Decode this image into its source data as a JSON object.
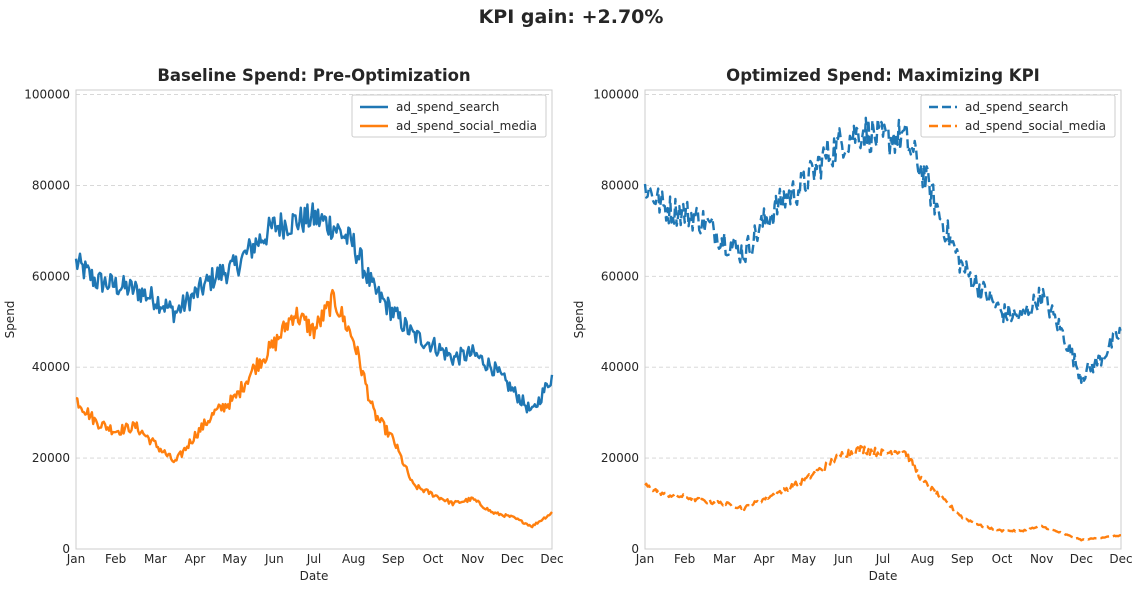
{
  "figure": {
    "suptitle": "KPI gain: +2.70%"
  },
  "colors": {
    "search": "#1f77b4",
    "social": "#ff7f0e"
  },
  "chart_data": [
    {
      "type": "line",
      "title": "Baseline Spend: Pre-Optimization",
      "xlabel": "Date",
      "ylabel": "Spend",
      "ylim": [
        0,
        101000
      ],
      "yticks": [
        0,
        20000,
        40000,
        60000,
        80000,
        100000
      ],
      "xticks": [
        "Jan",
        "Feb",
        "Mar",
        "Apr",
        "May",
        "Jun",
        "Jul",
        "Aug",
        "Sep",
        "Oct",
        "Nov",
        "Dec"
      ],
      "grid": "y-dashed",
      "legend_position": "top-right",
      "line_style": "solid",
      "x": [
        "Jan 1",
        "Jan 15",
        "Feb 1",
        "Feb 15",
        "Mar 1",
        "Mar 15",
        "Apr 1",
        "Apr 15",
        "May 1",
        "May 15",
        "Jun 1",
        "Jun 15",
        "Jul 1",
        "Jul 15",
        "Aug 1",
        "Aug 15",
        "Sep 1",
        "Sep 15",
        "Oct 1",
        "Oct 15",
        "Nov 1",
        "Nov 15",
        "Dec 1",
        "Dec 15",
        "Dec 31"
      ],
      "series": [
        {
          "name": "ad_spend_search",
          "color": "#1f77b4",
          "values": [
            63000,
            59000,
            58000,
            57000,
            55000,
            52000,
            56000,
            60000,
            62000,
            67000,
            71000,
            72000,
            73000,
            71000,
            67000,
            57000,
            52000,
            47000,
            45000,
            42000,
            43000,
            40000,
            35000,
            30000,
            38000
          ]
        },
        {
          "name": "ad_spend_social_media",
          "color": "#ff7f0e",
          "values": [
            33000,
            28000,
            26000,
            27000,
            23000,
            19000,
            25000,
            30000,
            33000,
            40000,
            45000,
            52000,
            48000,
            55000,
            46000,
            30000,
            24000,
            14000,
            12000,
            10000,
            11000,
            8000,
            7000,
            5000,
            8000
          ]
        }
      ]
    },
    {
      "type": "line",
      "title": "Optimized Spend: Maximizing KPI",
      "xlabel": "Date",
      "ylabel": "Spend",
      "ylim": [
        0,
        101000
      ],
      "yticks": [
        0,
        20000,
        40000,
        60000,
        80000,
        100000
      ],
      "xticks": [
        "Jan",
        "Feb",
        "Mar",
        "Apr",
        "May",
        "Jun",
        "Jul",
        "Aug",
        "Sep",
        "Oct",
        "Nov",
        "Dec"
      ],
      "grid": "y-dashed",
      "legend_position": "top-right",
      "line_style": "dashed",
      "x": [
        "Jan 1",
        "Jan 15",
        "Feb 1",
        "Feb 15",
        "Mar 1",
        "Mar 15",
        "Apr 1",
        "Apr 15",
        "May 1",
        "May 15",
        "Jun 1",
        "Jun 15",
        "Jul 1",
        "Jul 15",
        "Aug 1",
        "Aug 15",
        "Sep 1",
        "Sep 15",
        "Oct 1",
        "Oct 15",
        "Nov 1",
        "Nov 15",
        "Dec 1",
        "Dec 15",
        "Dec 31"
      ],
      "series": [
        {
          "name": "ad_spend_search",
          "color": "#1f77b4",
          "values": [
            80000,
            75000,
            74000,
            72000,
            68000,
            65000,
            72000,
            77000,
            80000,
            86000,
            90000,
            92000,
            90000,
            91000,
            83000,
            72000,
            62000,
            57000,
            52000,
            51000,
            56000,
            48000,
            38000,
            42000,
            48000
          ]
        },
        {
          "name": "ad_spend_social_media",
          "color": "#ff7f0e",
          "values": [
            14000,
            12000,
            11500,
            10500,
            10000,
            9000,
            11000,
            13000,
            15000,
            18000,
            21000,
            22000,
            21000,
            22000,
            15000,
            11000,
            7000,
            5000,
            4000,
            4000,
            5000,
            3500,
            2000,
            2500,
            3000
          ]
        }
      ]
    }
  ]
}
